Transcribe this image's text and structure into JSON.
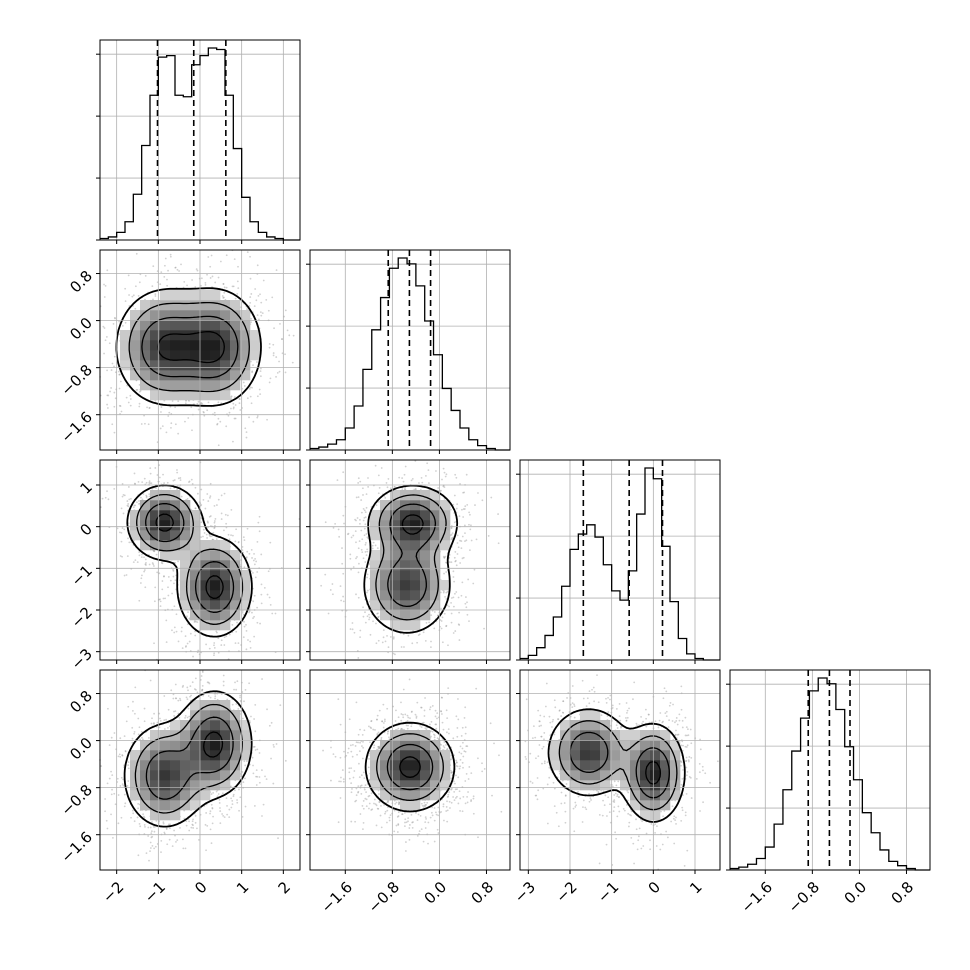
{
  "chart_data": {
    "type": "corner",
    "parameters": 4,
    "grid": true,
    "axes": [
      {
        "range": [
          -2.4,
          2.4
        ],
        "ticks": [
          -2,
          -1,
          0,
          1,
          2
        ],
        "tick_labels": [
          "−2",
          "−1",
          "0",
          "1",
          "2"
        ]
      },
      {
        "range": [
          -2.2,
          1.2
        ],
        "ticks": [
          -1.6,
          -0.8,
          0.0,
          0.8
        ],
        "tick_labels": [
          "−1.6",
          "−0.8",
          "0.0",
          "0.8"
        ]
      },
      {
        "range": [
          -3.2,
          1.6
        ],
        "ticks": [
          -3,
          -2,
          -1,
          0,
          1
        ],
        "tick_labels": [
          "−3",
          "−2",
          "−1",
          "0",
          "1"
        ]
      },
      {
        "range": [
          -2.2,
          1.2
        ],
        "ticks": [
          -1.6,
          -0.8,
          0.0,
          0.8
        ],
        "tick_labels": [
          "−1.6",
          "−0.8",
          "0.0",
          "0.8"
        ]
      }
    ],
    "quantiles": [
      [
        -1.02,
        -0.15,
        0.62
      ],
      [
        -0.87,
        -0.51,
        -0.15
      ],
      [
        -1.68,
        -0.58,
        0.22
      ],
      [
        -0.87,
        -0.51,
        -0.16
      ]
    ],
    "histograms": [
      {
        "bin_edges": [
          -2.4,
          -2.2,
          -2.0,
          -1.8,
          -1.6,
          -1.4,
          -1.2,
          -1.0,
          -0.8,
          -0.6,
          -0.4,
          -0.2,
          0.0,
          0.2,
          0.4,
          0.6,
          0.8,
          1.0,
          1.2,
          1.4,
          1.6,
          1.8,
          2.0,
          2.2,
          2.4
        ],
        "counts": [
          1,
          2,
          5,
          12,
          30,
          62,
          95,
          120,
          121,
          95,
          94,
          115,
          121,
          126,
          125,
          95,
          60,
          28,
          12,
          5,
          2,
          1,
          0,
          0
        ]
      },
      {
        "bin_edges": [
          -2.2,
          -2.05,
          -1.9,
          -1.75,
          -1.6,
          -1.45,
          -1.3,
          -1.15,
          -1.0,
          -0.85,
          -0.7,
          -0.55,
          -0.4,
          -0.25,
          -0.1,
          0.05,
          0.2,
          0.35,
          0.5,
          0.65,
          0.8,
          0.95,
          1.1,
          1.2
        ],
        "counts": [
          1,
          2,
          4,
          7,
          15,
          30,
          55,
          82,
          104,
          124,
          131,
          127,
          112,
          88,
          65,
          42,
          27,
          15,
          7,
          3,
          1,
          0,
          0
        ]
      },
      {
        "bin_edges": [
          -3.2,
          -3.0,
          -2.8,
          -2.6,
          -2.4,
          -2.2,
          -2.0,
          -1.8,
          -1.6,
          -1.4,
          -1.2,
          -1.0,
          -0.8,
          -0.6,
          -0.4,
          -0.2,
          0.0,
          0.2,
          0.4,
          0.6,
          0.8,
          1.0,
          1.2,
          1.4,
          1.6
        ],
        "counts": [
          1,
          3,
          8,
          16,
          28,
          48,
          72,
          82,
          88,
          80,
          62,
          45,
          39,
          58,
          95,
          125,
          118,
          74,
          38,
          14,
          4,
          1,
          0,
          0
        ]
      },
      {
        "bin_edges": [
          -2.2,
          -2.05,
          -1.9,
          -1.75,
          -1.6,
          -1.45,
          -1.3,
          -1.15,
          -1.0,
          -0.85,
          -0.7,
          -0.55,
          -0.4,
          -0.25,
          -0.1,
          0.05,
          0.2,
          0.35,
          0.5,
          0.65,
          0.8,
          0.95,
          1.1,
          1.2
        ],
        "counts": [
          1,
          2,
          4,
          8,
          16,
          32,
          56,
          83,
          106,
          125,
          134,
          130,
          112,
          86,
          63,
          40,
          26,
          14,
          6,
          3,
          1,
          0,
          0
        ]
      }
    ],
    "pairs": [
      {
        "i": 1,
        "j": 0,
        "modes": [
          [
            -0.85,
            -0.45,
            0.6,
            0.5,
            1.0
          ],
          [
            0.4,
            -0.45,
            0.55,
            0.5,
            1.0
          ]
        ]
      },
      {
        "i": 2,
        "j": 0,
        "modes": [
          [
            -0.85,
            0.1,
            0.45,
            0.45,
            1.0
          ],
          [
            0.35,
            -1.45,
            0.45,
            0.6,
            1.0
          ]
        ]
      },
      {
        "i": 2,
        "j": 1,
        "modes": [
          [
            -0.45,
            0.1,
            0.38,
            0.45,
            1.0
          ],
          [
            -0.55,
            -1.4,
            0.38,
            0.6,
            0.9
          ]
        ]
      },
      {
        "i": 3,
        "j": 0,
        "modes": [
          [
            -0.85,
            -0.6,
            0.5,
            0.45,
            0.9
          ],
          [
            0.35,
            -0.05,
            0.45,
            0.45,
            1.0
          ]
        ]
      },
      {
        "i": 3,
        "j": 1,
        "modes": [
          [
            -0.5,
            -0.45,
            0.38,
            0.38,
            1.0
          ]
        ]
      },
      {
        "i": 3,
        "j": 2,
        "modes": [
          [
            -1.55,
            -0.2,
            0.5,
            0.38,
            0.9
          ],
          [
            0.0,
            -0.55,
            0.38,
            0.42,
            1.0
          ]
        ]
      }
    ]
  }
}
